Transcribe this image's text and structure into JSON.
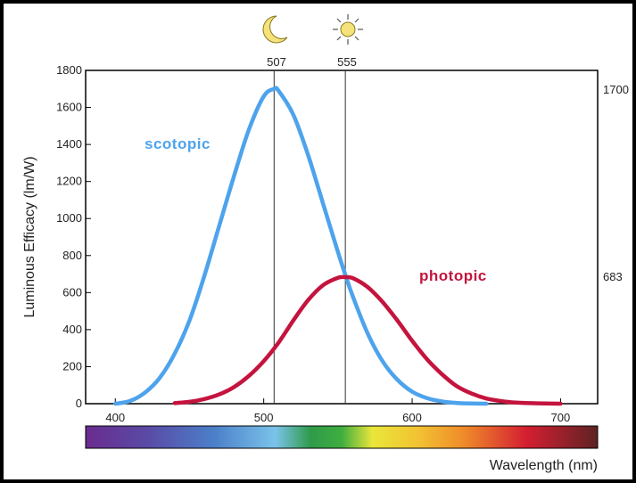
{
  "colors": {
    "scotopic": "#4da3ec",
    "photopic": "#c4143e",
    "icon_fill": "#f6e27a",
    "icon_stroke": "#8a7a20"
  },
  "icons": [
    "moon-icon",
    "sun-icon"
  ],
  "chart_data": {
    "type": "line",
    "title": "",
    "xlabel": "Wavelength (nm)",
    "ylabel": "Luminous Efficacy (lm/W)",
    "xlim": [
      380,
      725
    ],
    "ylim": [
      0,
      1800
    ],
    "x_ticks": [
      "400",
      "500",
      "600",
      "700"
    ],
    "y_ticks": [
      "0",
      "200",
      "400",
      "600",
      "800",
      "1000",
      "1200",
      "1400",
      "1600",
      "1800"
    ],
    "grid": false,
    "spectrum_bar": true,
    "series": [
      {
        "name": "scotopic",
        "peak_wavelength": 507,
        "peak_value": 1700,
        "x": [
          400,
          410,
          420,
          430,
          440,
          450,
          460,
          470,
          480,
          490,
          500,
          507,
          510,
          520,
          530,
          540,
          550,
          555,
          560,
          570,
          580,
          590,
          600,
          610,
          620,
          630,
          640,
          650
        ],
        "y": [
          0,
          15,
          60,
          140,
          270,
          450,
          690,
          960,
          1230,
          1480,
          1660,
          1700,
          1690,
          1560,
          1340,
          1080,
          820,
          695,
          580,
          380,
          230,
          130,
          65,
          30,
          12,
          4,
          1,
          0
        ]
      },
      {
        "name": "photopic",
        "peak_wavelength": 555,
        "peak_value": 683,
        "x": [
          440,
          450,
          460,
          470,
          480,
          490,
          500,
          510,
          520,
          530,
          540,
          550,
          555,
          560,
          570,
          580,
          590,
          600,
          610,
          620,
          630,
          640,
          650,
          660,
          670,
          680,
          690,
          700
        ],
        "y": [
          3,
          10,
          25,
          50,
          90,
          150,
          230,
          330,
          450,
          560,
          640,
          680,
          683,
          678,
          630,
          550,
          450,
          340,
          240,
          160,
          95,
          55,
          28,
          14,
          6,
          3,
          1,
          0
        ]
      }
    ],
    "annotations": [
      {
        "label": "507",
        "x": 507,
        "icon": "moon-icon"
      },
      {
        "label": "555",
        "x": 555,
        "icon": "sun-icon"
      }
    ],
    "right_labels": [
      "1700",
      "683"
    ]
  }
}
